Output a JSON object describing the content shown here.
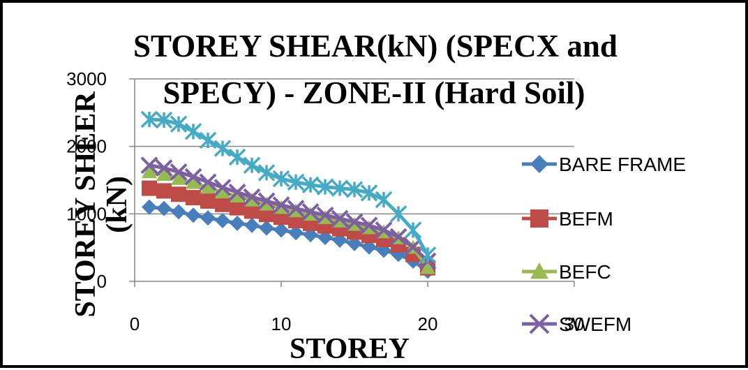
{
  "chart_data": {
    "type": "line",
    "title_lines": [
      "STOREY SHEAR(kN) (SPECX and",
      "SPECY)  - ZONE-II (Hard Soil)"
    ],
    "xlabel": "STOREY",
    "ylabel_lines": [
      "STOREY SHEER",
      "(kN)"
    ],
    "xlim": [
      0,
      30
    ],
    "ylim": [
      0,
      3000
    ],
    "x_ticks": [
      "0",
      "10",
      "20",
      "30"
    ],
    "y_ticks": [
      "0",
      "1000",
      "2000",
      "3000"
    ],
    "grid": "horizontal",
    "legend_position": "right",
    "x": [
      1,
      2,
      3,
      4,
      5,
      6,
      7,
      8,
      9,
      10,
      11,
      12,
      13,
      14,
      15,
      16,
      17,
      18,
      19,
      20
    ],
    "series": [
      {
        "name": "BARE FRAME",
        "marker": "diamond",
        "color": "#4a7ebb",
        "values": [
          1100,
          1080,
          1030,
          980,
          940,
          900,
          860,
          830,
          790,
          760,
          720,
          690,
          650,
          610,
          560,
          510,
          460,
          400,
          300,
          150
        ]
      },
      {
        "name": "BEFM",
        "marker": "square",
        "color": "#be4b48",
        "values": [
          1380,
          1340,
          1290,
          1240,
          1190,
          1140,
          1090,
          1040,
          990,
          950,
          900,
          860,
          820,
          780,
          730,
          680,
          620,
          540,
          400,
          200
        ]
      },
      {
        "name": "BEFC",
        "marker": "triangle",
        "color": "#98b954",
        "values": [
          1620,
          1580,
          1520,
          1460,
          1390,
          1320,
          1260,
          1200,
          1140,
          1090,
          1040,
          990,
          940,
          890,
          840,
          790,
          730,
          640,
          500,
          200
        ]
      },
      {
        "name": "SWEFM",
        "marker": "x",
        "color": "#7d60a0",
        "values": [
          1720,
          1680,
          1620,
          1550,
          1470,
          1390,
          1320,
          1250,
          1190,
          1130,
          1080,
          1030,
          980,
          930,
          880,
          830,
          760,
          660,
          510,
          300
        ]
      },
      {
        "name": "",
        "marker": "star",
        "color": "#46aac5",
        "values": [
          2400,
          2390,
          2330,
          2220,
          2090,
          1970,
          1840,
          1720,
          1610,
          1520,
          1470,
          1430,
          1400,
          1380,
          1360,
          1310,
          1210,
          1000,
          760,
          390
        ]
      }
    ]
  }
}
